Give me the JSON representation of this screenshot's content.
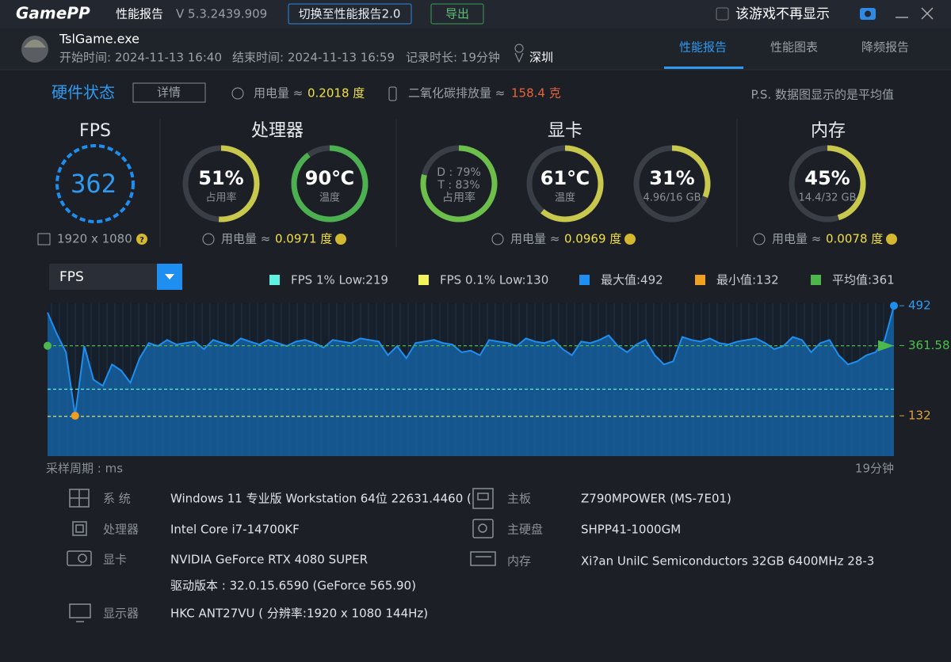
{
  "header": {
    "logo": "GamePP",
    "title": "性能报告",
    "version": "V 5.3.2439.909",
    "switch_button": "切换至性能报告2.0",
    "export_button": "导出",
    "hide_checkbox": "该游戏不再显示"
  },
  "session": {
    "process": "TslGame.exe",
    "start": "开始时间: 2024-11-13 16:40",
    "end": "结束时间: 2024-11-13 16:59",
    "duration": "记录时长: 19分钟",
    "location": "深圳"
  },
  "tabs": [
    "性能报告",
    "性能图表",
    "降频报告"
  ],
  "hardware": {
    "title": "硬件状态",
    "details_button": "详情",
    "power_label": "用电量 ≈",
    "power_value": "0.2018 度",
    "co2_label": "二氧化碳排放量 ≈",
    "co2_value": "158.4 克",
    "note": "P.S. 数据图显示的是平均值"
  },
  "fps_panel": {
    "title": "FPS",
    "value": "362",
    "resolution": "1920 x 1080"
  },
  "panels": [
    {
      "title": "处理器",
      "power_label": "用电量 ≈",
      "power_value": "0.0971 度",
      "gauges": [
        {
          "value": 51,
          "label": "51%",
          "captions": [
            "占用率"
          ],
          "color": "#c8c84c"
        },
        {
          "value": 90,
          "label": "90℃",
          "captions": [
            "温度"
          ],
          "color": "#4caf50"
        }
      ]
    },
    {
      "title": "显卡",
      "power_label": "用电量 ≈",
      "power_value": "0.0969 度",
      "gauges": [
        {
          "value": 79,
          "captions": [
            "D : 79%",
            "T : 83%",
            "占用率"
          ],
          "color": "#6cbf4a"
        },
        {
          "value": 61,
          "label": "61℃",
          "captions": [
            "温度"
          ],
          "color": "#c8c84c"
        },
        {
          "value": 31,
          "label": "31%",
          "captions": [
            "4.96/16 GB"
          ],
          "color": "#c8c84c"
        }
      ]
    },
    {
      "title": "内存",
      "power_label": "用电量 ≈",
      "power_value": "0.0078 度",
      "gauges": [
        {
          "value": 45,
          "label": "45%",
          "captions": [
            "14.4/32 GB"
          ],
          "color": "#c8c84c"
        }
      ]
    }
  ],
  "chart_data": {
    "type": "area",
    "selector": "FPS",
    "color": "#1e8ff0",
    "legend": [
      {
        "label": "FPS 1% Low:219",
        "value": 219,
        "color": "#5ff2e2"
      },
      {
        "label": "FPS 0.1% Low:130",
        "value": 130,
        "color": "#f2f25a"
      },
      {
        "label": "最大值:492",
        "value": 492,
        "color": "#1e8ff0"
      },
      {
        "label": "最小值:132",
        "value": 132,
        "color": "#f0a020"
      },
      {
        "label": "平均值:361",
        "value": 361,
        "color": "#4cb84c"
      }
    ],
    "values": [
      470,
      400,
      340,
      132,
      360,
      250,
      230,
      300,
      280,
      240,
      320,
      370,
      360,
      380,
      365,
      370,
      375,
      350,
      380,
      370,
      360,
      385,
      375,
      365,
      380,
      370,
      360,
      375,
      380,
      370,
      355,
      380,
      375,
      370,
      385,
      380,
      375,
      330,
      360,
      320,
      370,
      375,
      380,
      370,
      365,
      340,
      345,
      330,
      380,
      375,
      370,
      360,
      385,
      375,
      370,
      380,
      350,
      330,
      375,
      370,
      380,
      395,
      360,
      340,
      365,
      380,
      330,
      300,
      310,
      390,
      380,
      375,
      385,
      370,
      365,
      375,
      380,
      385,
      370,
      350,
      360,
      390,
      380,
      340,
      370,
      380,
      330,
      300,
      310,
      330,
      340,
      380,
      492
    ],
    "ylim": [
      0,
      500
    ],
    "yticks": [
      132,
      361.58,
      492
    ],
    "x_start_label": "采样周期 : ms",
    "x_end_label": "19分钟"
  },
  "system_info": {
    "left": [
      {
        "label": "系 统",
        "value": "Windows 11 专业版 Workstation 64位 22631.4460 ("
      },
      {
        "label": "处理器",
        "value": "Intel Core i7-14700KF"
      },
      {
        "label": "显卡",
        "value": "NVIDIA GeForce RTX 4080 SUPER",
        "extra": "驱动版本 : 32.0.15.6590 (GeForce 565.90)"
      },
      {
        "label": "显示器",
        "value": "HKC ANT27VU ( 分辨率:1920 x 1080 144Hz)"
      }
    ],
    "right": [
      {
        "label": "主板",
        "value": "Z790MPOWER (MS-7E01)"
      },
      {
        "label": "主硬盘",
        "value": "SHPP41-1000GM"
      },
      {
        "label": "内存",
        "value": "Xi?an UnilC Semiconductors 32GB 6400MHz 28-3"
      }
    ]
  }
}
